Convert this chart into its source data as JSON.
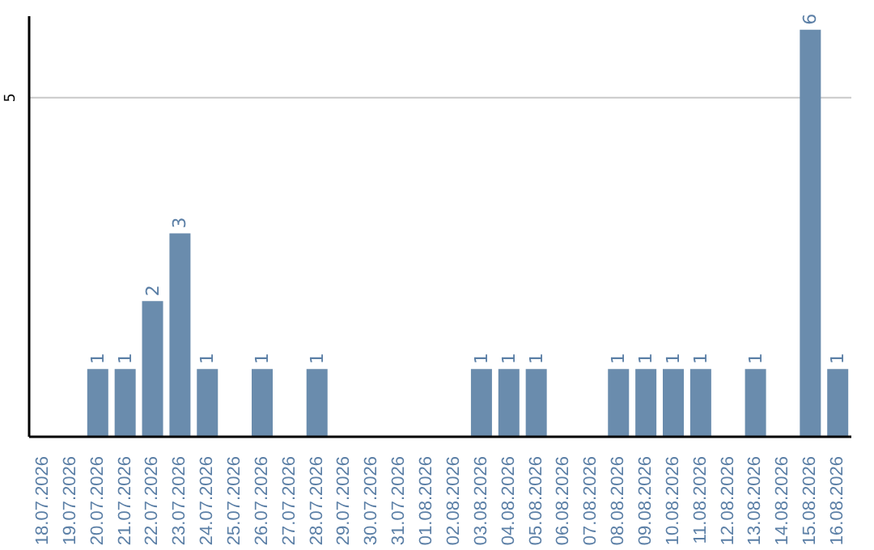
{
  "chart_data": {
    "type": "bar",
    "categories": [
      "18.07.2026",
      "19.07.2026",
      "20.07.2026",
      "21.07.2026",
      "22.07.2026",
      "23.07.2026",
      "24.07.2026",
      "25.07.2026",
      "26.07.2026",
      "27.07.2026",
      "28.07.2026",
      "29.07.2026",
      "30.07.2026",
      "31.07.2026",
      "01.08.2026",
      "02.08.2026",
      "03.08.2026",
      "04.08.2026",
      "05.08.2026",
      "06.08.2026",
      "07.08.2026",
      "08.08.2026",
      "09.08.2026",
      "10.08.2026",
      "11.08.2026",
      "12.08.2026",
      "13.08.2026",
      "14.08.2026",
      "15.08.2026",
      "16.08.2026"
    ],
    "values": [
      0,
      0,
      1,
      1,
      2,
      3,
      1,
      0,
      1,
      0,
      1,
      0,
      0,
      0,
      0,
      0,
      1,
      1,
      1,
      0,
      0,
      1,
      1,
      1,
      1,
      0,
      1,
      0,
      6,
      1
    ],
    "value_labels": [
      null,
      null,
      "1",
      "1",
      "2",
      "3",
      "1",
      null,
      "1",
      null,
      "1",
      null,
      null,
      null,
      null,
      null,
      "1",
      "1",
      "1",
      null,
      null,
      "1",
      "1",
      "1",
      "1",
      null,
      "1",
      null,
      "6",
      "1"
    ],
    "color": "#6a8cad",
    "ylim": [
      0,
      6.2
    ],
    "yticks": [
      5
    ],
    "grid": "y"
  }
}
